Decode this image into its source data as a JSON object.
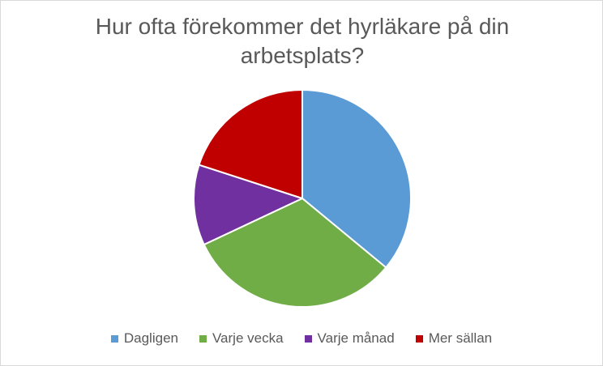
{
  "chart_data": {
    "type": "pie",
    "title": "Hur ofta förekommer det hyrläkare på din arbetsplats?",
    "categories": [
      "Dagligen",
      "Varje vecka",
      "Varje månad",
      "Mer sällan"
    ],
    "values": [
      36,
      32,
      12,
      20
    ],
    "colors": [
      "#5b9bd5",
      "#70ad47",
      "#7030a0",
      "#c00000"
    ],
    "legend_position": "bottom",
    "start_angle": "12 o'clock",
    "direction": "clockwise"
  }
}
